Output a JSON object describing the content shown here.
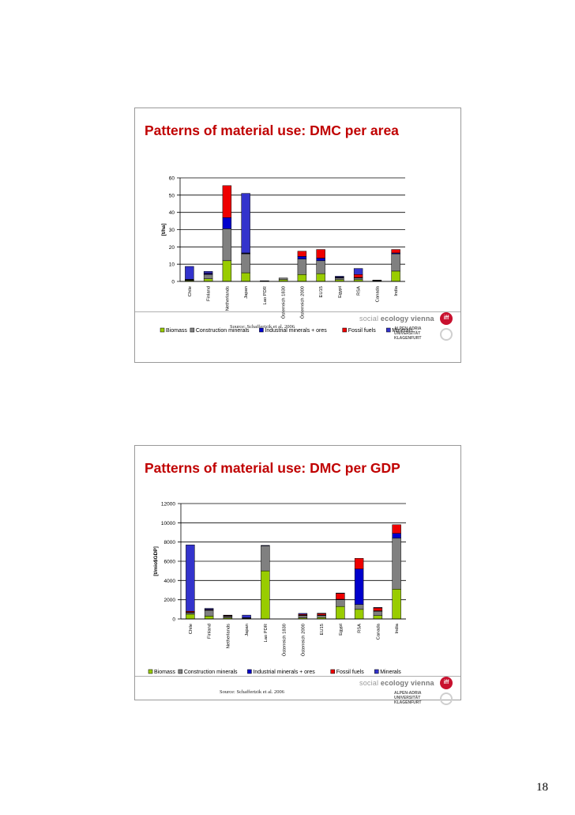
{
  "page": {
    "number": "18"
  },
  "slides": [
    {
      "title": "Patterns of material use: DMC per area",
      "source": "Source: Schaffertzik et al. 2006",
      "logo": {
        "brand_light": "social",
        "brand_bold": "ecology vienna",
        "badge": "iff",
        "university": "ALPEN-ADRIA\nUNIVERSITÄT\nKLAGENFURT"
      }
    },
    {
      "title": "Patterns of material use: DMC per GDP",
      "source": "Source: Schaffertzik et al. 2006",
      "logo": {
        "brand_light": "social",
        "brand_bold": "ecology vienna",
        "badge": "iff",
        "university": "ALPEN-ADRIA\nUNIVERSITÄT\nKLAGENFURT"
      }
    }
  ],
  "chart_data": [
    {
      "type": "bar",
      "stacked": true,
      "title": "Patterns of material use: DMC per area",
      "ylabel": "[t/ha]",
      "xlabel": "",
      "ylim": [
        0,
        60
      ],
      "yticks": [
        "0",
        "10",
        "20",
        "30",
        "40",
        "50",
        "60"
      ],
      "grid": true,
      "legend_position": "bottom",
      "categories": [
        "Chile",
        "Finland",
        "Netherlands",
        "Japan",
        "Lao PDR",
        "Österreich 1830",
        "Österreich 2000",
        "EU15",
        "Egypt",
        "RSA",
        "Canada",
        "India"
      ],
      "series": [
        {
          "name": "Biomass",
          "color": "#99cc00",
          "values": [
            0.5,
            1.5,
            12,
            5,
            0.2,
            1,
            4,
            4.5,
            1,
            1,
            0.2,
            6
          ]
        },
        {
          "name": "Construction minerals",
          "color": "#808080",
          "values": [
            0.3,
            2.5,
            18.5,
            11,
            0.1,
            1,
            9,
            7.5,
            1,
            1,
            0.3,
            10
          ]
        },
        {
          "name": "Industrial minerals + ores",
          "color": "#0000cc",
          "values": [
            0.2,
            0.5,
            6.5,
            0.3,
            0,
            0,
            1.5,
            1.5,
            0.3,
            0.3,
            0.1,
            0.5
          ]
        },
        {
          "name": "Fossil fuels",
          "color": "#ee0000",
          "values": [
            0.2,
            0.3,
            18.5,
            0.2,
            0,
            0,
            3,
            5,
            0.2,
            1.7,
            0.2,
            2
          ]
        },
        {
          "name": "Minerals",
          "color": "#3333cc",
          "values": [
            7.5,
            1,
            0,
            34.5,
            0.1,
            0,
            0,
            0,
            0.5,
            3.5,
            0,
            0
          ]
        }
      ]
    },
    {
      "type": "bar",
      "stacked": true,
      "title": "Patterns of material use: DMC per GDP",
      "ylabel": "[t/mio$GDP]",
      "xlabel": "",
      "ylim": [
        0,
        12000
      ],
      "yticks": [
        "0",
        "2000",
        "4000",
        "6000",
        "8000",
        "10000",
        "12000"
      ],
      "grid": true,
      "legend_position": "bottom",
      "categories": [
        "Chile",
        "Finland",
        "Netherlands",
        "Japan",
        "Lao PDR",
        "Österreich 1830",
        "Österreich 2000",
        "EU15",
        "Egypt",
        "RSA",
        "Canada",
        "India"
      ],
      "series": [
        {
          "name": "Biomass",
          "color": "#99cc00",
          "values": [
            500,
            300,
            120,
            30,
            5000,
            0,
            120,
            150,
            1300,
            1000,
            350,
            3100
          ]
        },
        {
          "name": "Construction minerals",
          "color": "#808080",
          "values": [
            150,
            600,
            160,
            70,
            2600,
            0,
            230,
            200,
            700,
            500,
            450,
            5300
          ]
        },
        {
          "name": "Industrial minerals + ores",
          "color": "#0000cc",
          "values": [
            50,
            50,
            20,
            20,
            0,
            0,
            30,
            50,
            50,
            3700,
            50,
            500
          ]
        },
        {
          "name": "Fossil fuels",
          "color": "#ee0000",
          "values": [
            100,
            50,
            80,
            10,
            0,
            0,
            100,
            150,
            600,
            1100,
            300,
            900
          ]
        },
        {
          "name": "Minerals",
          "color": "#3333cc",
          "values": [
            6900,
            100,
            20,
            270,
            50,
            0,
            100,
            50,
            50,
            0,
            50,
            0
          ]
        }
      ]
    }
  ]
}
